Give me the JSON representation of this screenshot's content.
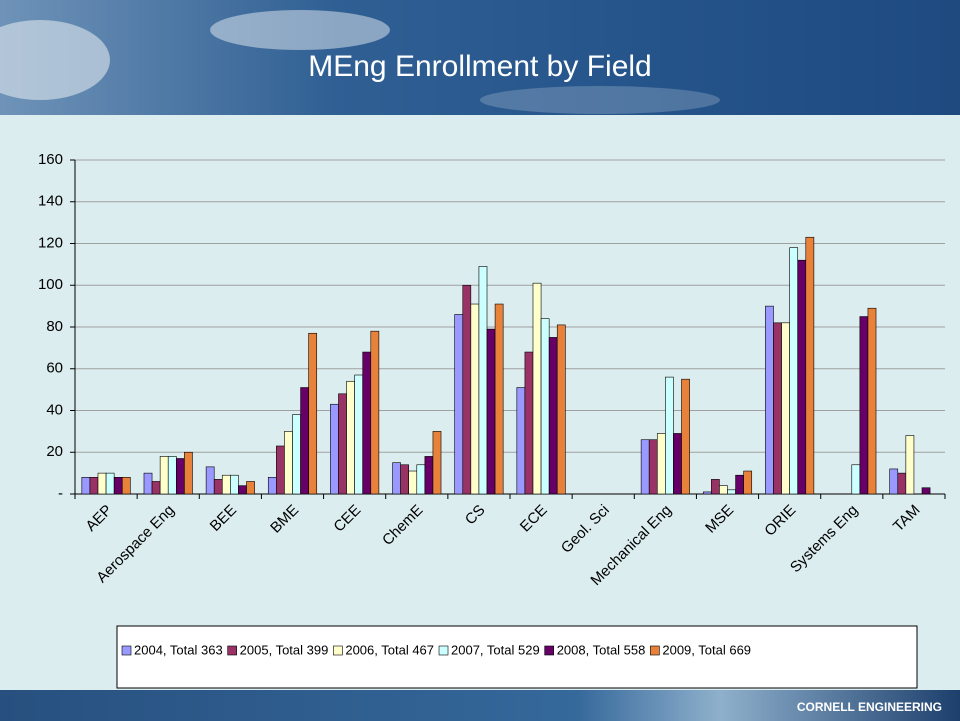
{
  "chart_data": {
    "type": "bar",
    "title": "MEng Enrollment by Field",
    "categories": [
      "AEP",
      "Aerospace Eng",
      "BEE",
      "BME",
      "CEE",
      "ChemE",
      "CS",
      "ECE",
      "Geol. Sci",
      "Mechanical Eng",
      "MSE",
      "ORIE",
      "Systems Eng",
      "TAM"
    ],
    "series": [
      {
        "name": "2004, Total 363",
        "color": "#9999ff",
        "values": [
          8,
          10,
          13,
          8,
          43,
          15,
          86,
          51,
          0,
          26,
          1,
          90,
          0,
          12
        ]
      },
      {
        "name": "2005, Total 399",
        "color": "#993366",
        "values": [
          8,
          6,
          7,
          23,
          48,
          14,
          100,
          68,
          0,
          26,
          7,
          82,
          0,
          10
        ]
      },
      {
        "name": "2006, Total 467",
        "color": "#ffffcc",
        "values": [
          10,
          18,
          9,
          30,
          54,
          11,
          91,
          101,
          0,
          29,
          4,
          82,
          0,
          28
        ]
      },
      {
        "name": "2007, Total 529",
        "color": "#ccffff",
        "values": [
          10,
          18,
          9,
          38,
          57,
          14,
          109,
          84,
          0,
          56,
          2,
          118,
          14,
          0
        ]
      },
      {
        "name": "2008, Total 558",
        "color": "#660066",
        "values": [
          8,
          17,
          4,
          51,
          68,
          18,
          79,
          75,
          0,
          29,
          9,
          112,
          85,
          3
        ]
      },
      {
        "name": "2009, Total 669",
        "color": "#e8823a",
        "values": [
          8,
          20,
          6,
          77,
          78,
          30,
          91,
          81,
          0,
          55,
          11,
          123,
          89,
          0
        ]
      }
    ],
    "ylim": [
      0,
      160
    ],
    "yticks": [
      {
        "value": 0,
        "label": "-"
      },
      20,
      40,
      60,
      80,
      100,
      120,
      140,
      160
    ],
    "grid": true,
    "legend": "bottom"
  },
  "footer": "CORNELL ENGINEERING"
}
